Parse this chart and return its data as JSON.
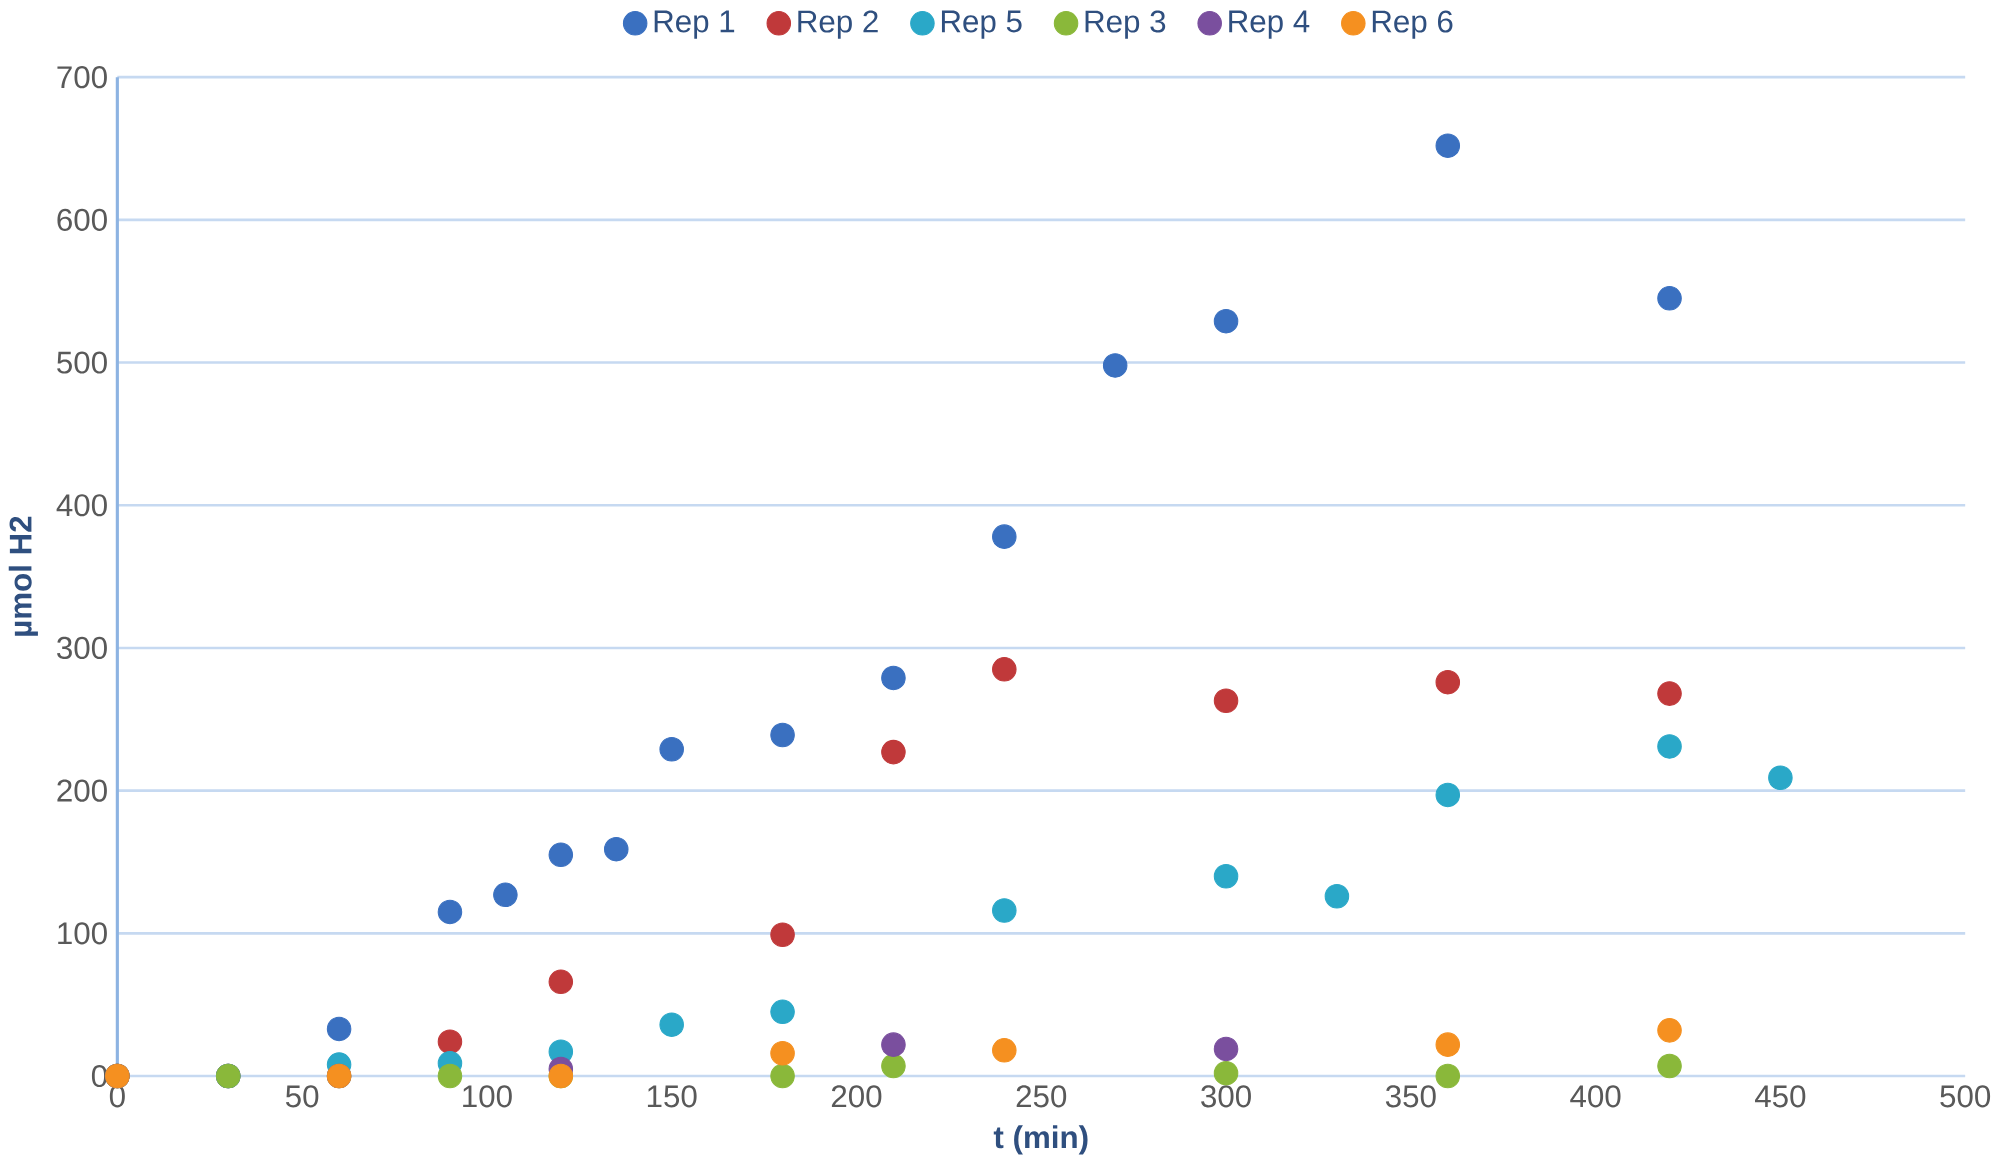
{
  "chart_data": {
    "type": "scatter",
    "xlabel": "t (min)",
    "ylabel": "µmol H2",
    "xlim": [
      0,
      500
    ],
    "ylim": [
      0,
      700
    ],
    "xticks": [
      0,
      50,
      100,
      150,
      200,
      250,
      300,
      350,
      400,
      450,
      500
    ],
    "yticks": [
      0,
      100,
      200,
      300,
      400,
      500,
      600,
      700
    ],
    "grid": "y",
    "legend": "top",
    "series": [
      {
        "name": "Rep 1",
        "color": "#3a70c0",
        "x": [
          30,
          60,
          90,
          105,
          120,
          135,
          150,
          180,
          210,
          240,
          270,
          300,
          360,
          420
        ],
        "values": [
          0,
          33,
          115,
          127,
          155,
          159,
          229,
          239,
          279,
          378,
          498,
          529,
          652,
          545
        ]
      },
      {
        "name": "Rep 2",
        "color": "#c0393a",
        "x": [
          0,
          30,
          90,
          120,
          180,
          210,
          240,
          300,
          360,
          420
        ],
        "values": [
          0,
          0,
          24,
          66,
          99,
          227,
          285,
          263,
          276,
          268
        ]
      },
      {
        "name": "Rep 5",
        "color": "#2aa8c8",
        "x": [
          0,
          30,
          60,
          90,
          120,
          150,
          180,
          240,
          300,
          330,
          360,
          420,
          450
        ],
        "values": [
          0,
          0,
          8,
          9,
          17,
          36,
          45,
          116,
          140,
          126,
          197,
          231,
          209
        ]
      },
      {
        "name": "Rep 3",
        "color": "#8ab83a",
        "x": [
          0,
          30,
          60,
          90,
          120,
          180,
          210,
          300,
          360,
          420
        ],
        "values": [
          0,
          0,
          0,
          0,
          0,
          0,
          7,
          2,
          0,
          7
        ]
      },
      {
        "name": "Rep 4",
        "color": "#7a4f9e",
        "x": [
          0,
          60,
          120,
          210,
          300
        ],
        "values": [
          0,
          0,
          5,
          22,
          19
        ]
      },
      {
        "name": "Rep 6",
        "color": "#f59020",
        "x": [
          0,
          60,
          120,
          180,
          240,
          360,
          420
        ],
        "values": [
          0,
          0,
          0,
          16,
          18,
          22,
          32
        ]
      }
    ]
  }
}
